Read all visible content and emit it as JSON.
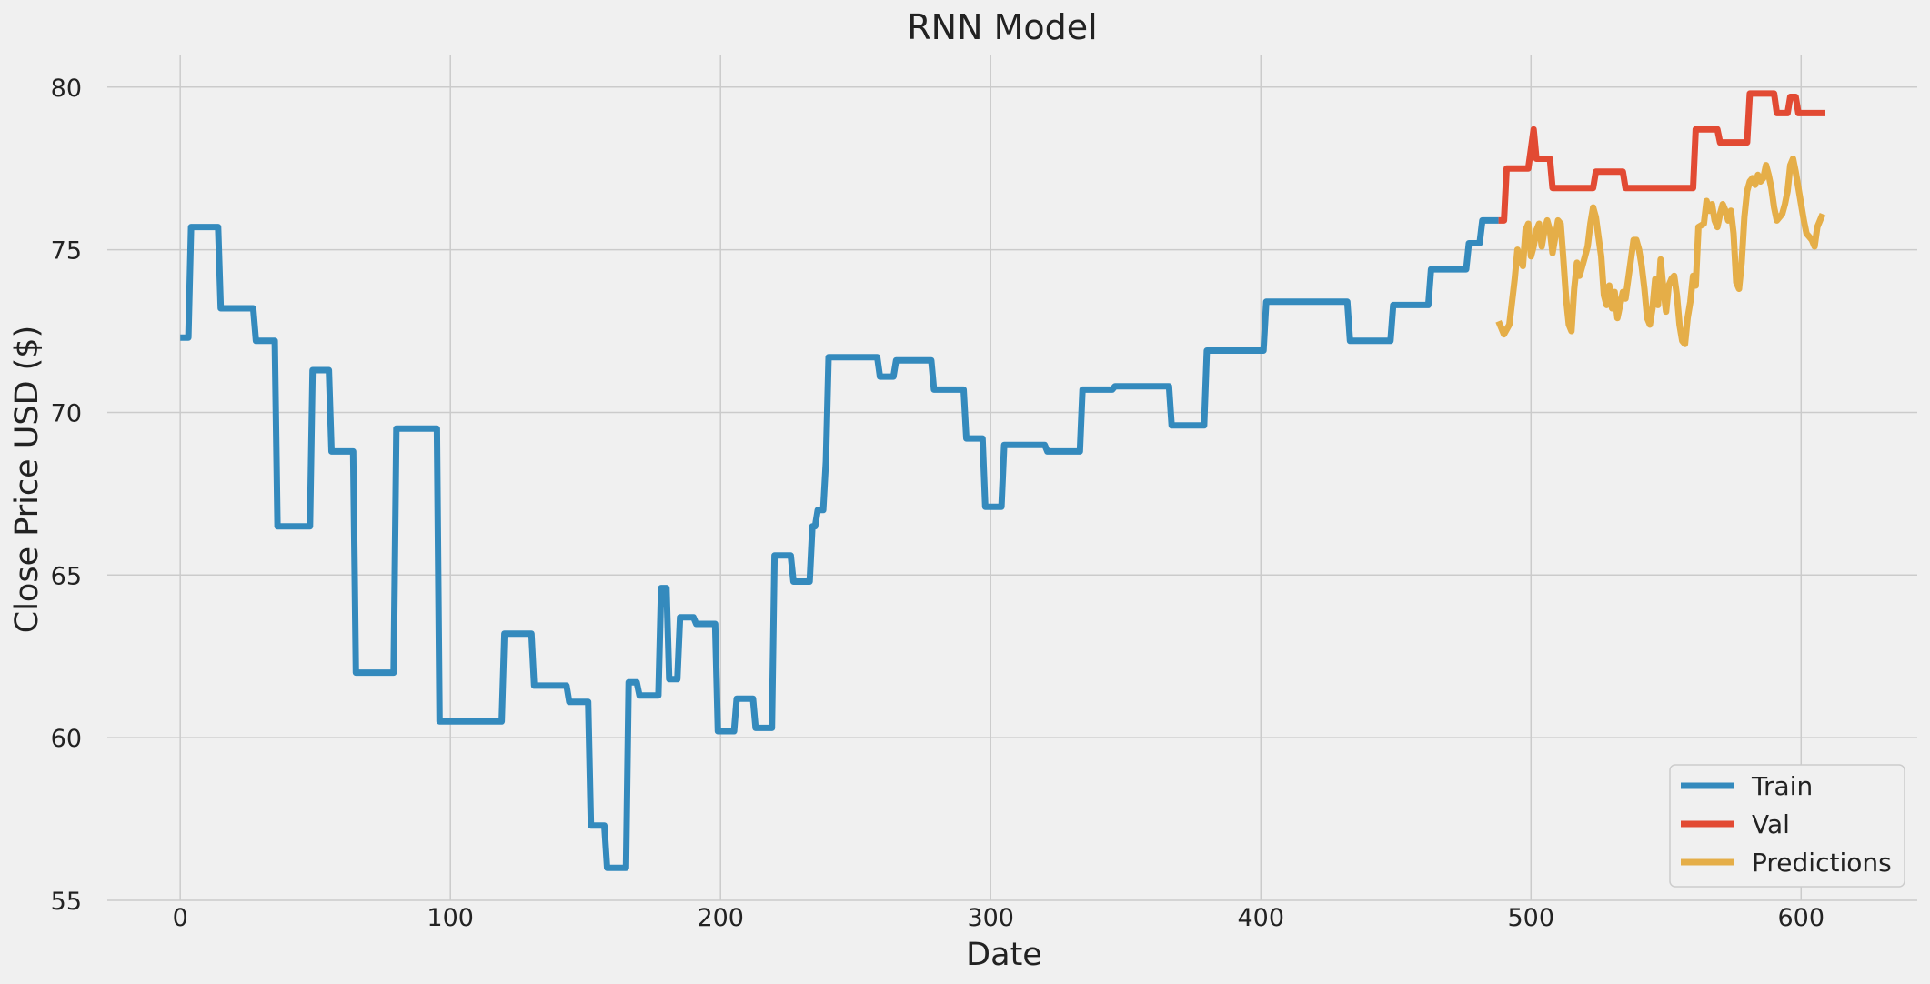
{
  "chart_data": {
    "type": "line",
    "title": "RNN Model",
    "xlabel": "Date",
    "ylabel": "Close Price USD ($)",
    "xlim": [
      -27,
      643
    ],
    "ylim": [
      55,
      81
    ],
    "xticks": [
      0,
      100,
      200,
      300,
      400,
      500,
      600
    ],
    "yticks": [
      55,
      60,
      65,
      70,
      75,
      80
    ],
    "grid": true,
    "legend_position": "bottom-right",
    "series": [
      {
        "name": "Train",
        "color": "#348ABD",
        "points": [
          [
            0,
            72.3
          ],
          [
            3,
            72.3
          ],
          [
            4,
            75.7
          ],
          [
            14,
            75.7
          ],
          [
            15,
            73.2
          ],
          [
            27,
            73.2
          ],
          [
            28,
            72.2
          ],
          [
            35,
            72.2
          ],
          [
            36,
            66.5
          ],
          [
            48,
            66.5
          ],
          [
            49,
            71.3
          ],
          [
            55,
            71.3
          ],
          [
            56,
            68.8
          ],
          [
            64,
            68.8
          ],
          [
            65,
            62.0
          ],
          [
            79,
            62.0
          ],
          [
            80,
            69.5
          ],
          [
            95,
            69.5
          ],
          [
            96,
            60.5
          ],
          [
            119,
            60.5
          ],
          [
            120,
            63.2
          ],
          [
            130,
            63.2
          ],
          [
            131,
            61.6
          ],
          [
            143,
            61.6
          ],
          [
            144,
            61.1
          ],
          [
            151,
            61.1
          ],
          [
            152,
            57.3
          ],
          [
            157,
            57.3
          ],
          [
            158,
            56.0
          ],
          [
            165,
            56.0
          ],
          [
            166,
            61.7
          ],
          [
            169,
            61.7
          ],
          [
            170,
            61.3
          ],
          [
            177,
            61.3
          ],
          [
            178,
            64.6
          ],
          [
            180,
            64.6
          ],
          [
            181,
            61.8
          ],
          [
            184,
            61.8
          ],
          [
            185,
            63.7
          ],
          [
            190,
            63.7
          ],
          [
            191,
            63.5
          ],
          [
            198,
            63.5
          ],
          [
            199,
            60.2
          ],
          [
            205,
            60.2
          ],
          [
            206,
            61.2
          ],
          [
            212,
            61.2
          ],
          [
            213,
            60.3
          ],
          [
            219,
            60.3
          ],
          [
            220,
            65.6
          ],
          [
            226,
            65.6
          ],
          [
            227,
            64.8
          ],
          [
            233,
            64.8
          ],
          [
            234,
            66.5
          ],
          [
            235,
            66.5
          ],
          [
            236,
            67.0
          ],
          [
            238,
            67.0
          ],
          [
            239,
            68.5
          ],
          [
            240,
            71.7
          ],
          [
            258,
            71.7
          ],
          [
            259,
            71.1
          ],
          [
            264,
            71.1
          ],
          [
            265,
            71.6
          ],
          [
            278,
            71.6
          ],
          [
            279,
            70.7
          ],
          [
            290,
            70.7
          ],
          [
            291,
            69.2
          ],
          [
            297,
            69.2
          ],
          [
            298,
            67.1
          ],
          [
            304,
            67.1
          ],
          [
            305,
            69.0
          ],
          [
            320,
            69.0
          ],
          [
            321,
            68.8
          ],
          [
            333,
            68.8
          ],
          [
            334,
            70.7
          ],
          [
            345,
            70.7
          ],
          [
            346,
            70.8
          ],
          [
            366,
            70.8
          ],
          [
            367,
            69.6
          ],
          [
            379,
            69.6
          ],
          [
            380,
            71.9
          ],
          [
            401,
            71.9
          ],
          [
            402,
            73.4
          ],
          [
            432,
            73.4
          ],
          [
            433,
            72.2
          ],
          [
            448,
            72.2
          ],
          [
            449,
            73.3
          ],
          [
            462,
            73.3
          ],
          [
            463,
            74.4
          ],
          [
            476,
            74.4
          ],
          [
            477,
            75.2
          ],
          [
            481,
            75.2
          ],
          [
            482,
            75.9
          ],
          [
            488,
            75.9
          ]
        ]
      },
      {
        "name": "Val",
        "color": "#E24A33",
        "points": [
          [
            488,
            75.9
          ],
          [
            490,
            75.9
          ],
          [
            491,
            77.5
          ],
          [
            499,
            77.5
          ],
          [
            500,
            78.1
          ],
          [
            501,
            78.7
          ],
          [
            502,
            77.8
          ],
          [
            507,
            77.8
          ],
          [
            508,
            76.9
          ],
          [
            523,
            76.9
          ],
          [
            524,
            77.4
          ],
          [
            534,
            77.4
          ],
          [
            535,
            76.9
          ],
          [
            560,
            76.9
          ],
          [
            561,
            78.7
          ],
          [
            569,
            78.7
          ],
          [
            570,
            78.3
          ],
          [
            580,
            78.3
          ],
          [
            581,
            79.8
          ],
          [
            590,
            79.8
          ],
          [
            591,
            79.2
          ],
          [
            595,
            79.2
          ],
          [
            596,
            79.7
          ],
          [
            598,
            79.7
          ],
          [
            599,
            79.2
          ],
          [
            609,
            79.2
          ]
        ]
      },
      {
        "name": "Predictions",
        "color": "#E5AE48",
        "points": [
          [
            488,
            72.8
          ],
          [
            490,
            72.4
          ],
          [
            492,
            72.7
          ],
          [
            494,
            74.1
          ],
          [
            495,
            75.0
          ],
          [
            497,
            74.5
          ],
          [
            498,
            75.6
          ],
          [
            499,
            75.8
          ],
          [
            500,
            74.8
          ],
          [
            501,
            75.1
          ],
          [
            502,
            75.6
          ],
          [
            503,
            75.8
          ],
          [
            504,
            75.1
          ],
          [
            505,
            75.6
          ],
          [
            506,
            75.9
          ],
          [
            507,
            75.6
          ],
          [
            508,
            74.9
          ],
          [
            510,
            75.9
          ],
          [
            511,
            75.8
          ],
          [
            512,
            74.7
          ],
          [
            513,
            73.5
          ],
          [
            514,
            72.7
          ],
          [
            515,
            72.5
          ],
          [
            516,
            73.8
          ],
          [
            517,
            74.6
          ],
          [
            518,
            74.2
          ],
          [
            519,
            74.5
          ],
          [
            520,
            74.8
          ],
          [
            521,
            75.1
          ],
          [
            522,
            75.8
          ],
          [
            523,
            76.3
          ],
          [
            524,
            76.0
          ],
          [
            525,
            75.4
          ],
          [
            526,
            74.8
          ],
          [
            527,
            73.6
          ],
          [
            528,
            73.3
          ],
          [
            529,
            73.9
          ],
          [
            530,
            73.2
          ],
          [
            531,
            73.7
          ],
          [
            532,
            72.9
          ],
          [
            533,
            73.3
          ],
          [
            534,
            73.7
          ],
          [
            535,
            73.5
          ],
          [
            537,
            74.7
          ],
          [
            538,
            75.3
          ],
          [
            539,
            75.3
          ],
          [
            540,
            75.0
          ],
          [
            541,
            74.5
          ],
          [
            542,
            73.8
          ],
          [
            543,
            72.9
          ],
          [
            544,
            72.7
          ],
          [
            545,
            73.2
          ],
          [
            546,
            74.1
          ],
          [
            547,
            73.3
          ],
          [
            548,
            74.7
          ],
          [
            549,
            73.8
          ],
          [
            550,
            73.1
          ],
          [
            551,
            73.9
          ],
          [
            552,
            74.1
          ],
          [
            553,
            74.2
          ],
          [
            554,
            73.6
          ],
          [
            555,
            72.7
          ],
          [
            556,
            72.2
          ],
          [
            557,
            72.1
          ],
          [
            558,
            72.9
          ],
          [
            559,
            73.4
          ],
          [
            560,
            74.2
          ],
          [
            561,
            73.9
          ],
          [
            562,
            75.7
          ],
          [
            564,
            75.8
          ],
          [
            565,
            76.5
          ],
          [
            566,
            76.2
          ],
          [
            567,
            76.4
          ],
          [
            568,
            75.9
          ],
          [
            569,
            75.7
          ],
          [
            570,
            76.1
          ],
          [
            571,
            76.4
          ],
          [
            572,
            76.2
          ],
          [
            573,
            75.9
          ],
          [
            574,
            76.2
          ],
          [
            575,
            75.5
          ],
          [
            576,
            74.0
          ],
          [
            577,
            73.8
          ],
          [
            578,
            74.6
          ],
          [
            579,
            76.0
          ],
          [
            580,
            76.8
          ],
          [
            581,
            77.1
          ],
          [
            582,
            77.2
          ],
          [
            583,
            77.0
          ],
          [
            584,
            77.3
          ],
          [
            585,
            77.1
          ],
          [
            586,
            77.2
          ],
          [
            587,
            77.6
          ],
          [
            588,
            77.3
          ],
          [
            589,
            76.9
          ],
          [
            590,
            76.3
          ],
          [
            591,
            75.9
          ],
          [
            593,
            76.1
          ],
          [
            594,
            76.4
          ],
          [
            595,
            76.8
          ],
          [
            596,
            77.6
          ],
          [
            597,
            77.8
          ],
          [
            598,
            77.4
          ],
          [
            599,
            76.9
          ],
          [
            600,
            76.4
          ],
          [
            601,
            75.9
          ],
          [
            602,
            75.5
          ],
          [
            603,
            75.4
          ],
          [
            604,
            75.3
          ],
          [
            605,
            75.1
          ],
          [
            606,
            75.7
          ],
          [
            607,
            75.9
          ],
          [
            608,
            76.1
          ]
        ]
      }
    ]
  }
}
